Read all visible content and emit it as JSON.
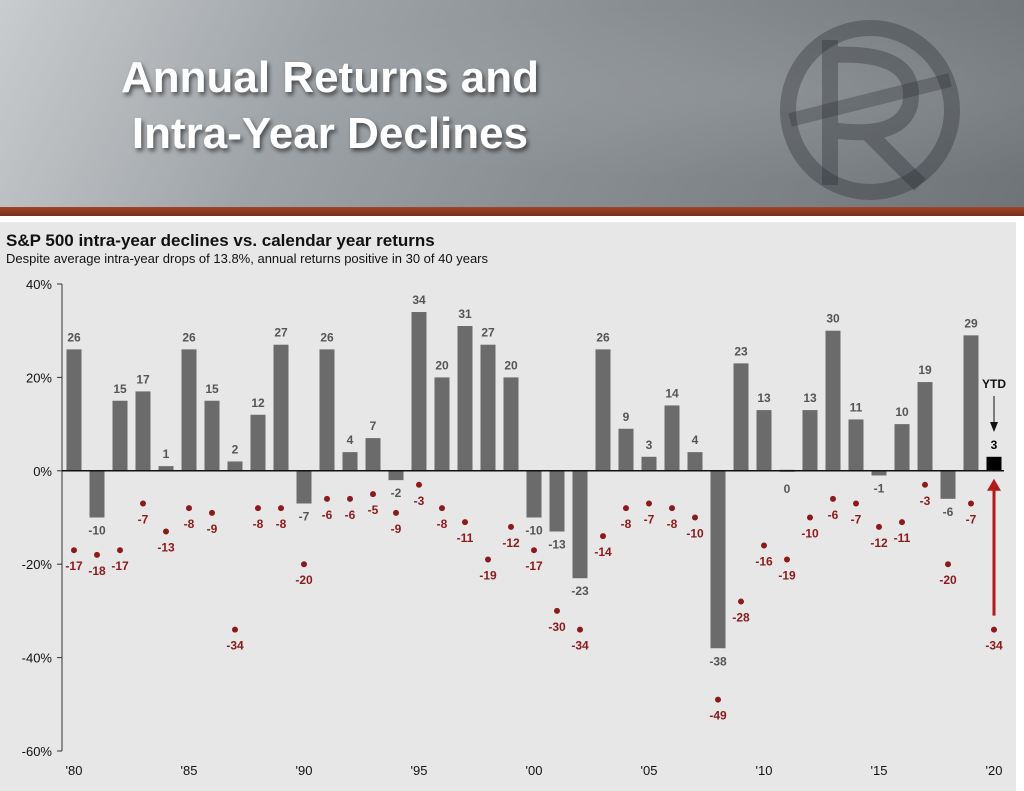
{
  "banner": {
    "title_line1": "Annual Returns and",
    "title_line2": "Intra-Year Declines"
  },
  "colors": {
    "bar": "#6b6b6b",
    "ytd_bar": "#000000",
    "decline": "#8b1a1a",
    "arrow": "#b01c1c",
    "panel": "#e7e7e7",
    "banner_accent": "#8a3a22"
  },
  "chart_data": {
    "type": "bar",
    "title": "S&P 500 intra-year declines vs. calendar year returns",
    "subtitle": "Despite average intra-year drops of 13.8%, annual returns positive in 30 of 40 years",
    "y_ticks": [
      "40%",
      "20%",
      "0%",
      "-20%",
      "-40%",
      "-60%"
    ],
    "ylim": [
      -60,
      40
    ],
    "x_tick_labels": [
      "'80",
      "'85",
      "'90",
      "'95",
      "'00",
      "'05",
      "'10",
      "'15",
      "'20"
    ],
    "years": [
      1980,
      1981,
      1982,
      1983,
      1984,
      1985,
      1986,
      1987,
      1988,
      1989,
      1990,
      1991,
      1992,
      1993,
      1994,
      1995,
      1996,
      1997,
      1998,
      1999,
      2000,
      2001,
      2002,
      2003,
      2004,
      2005,
      2006,
      2007,
      2008,
      2009,
      2010,
      2011,
      2012,
      2013,
      2014,
      2015,
      2016,
      2017,
      2018,
      2019,
      2020
    ],
    "series": [
      {
        "type": "bar",
        "values": [
          26,
          -10,
          15,
          17,
          1,
          26,
          15,
          2,
          12,
          27,
          -7,
          26,
          4,
          7,
          -2,
          34,
          20,
          31,
          27,
          20,
          -10,
          -13,
          -23,
          26,
          9,
          3,
          14,
          4,
          -38,
          23,
          13,
          0,
          13,
          30,
          11,
          -1,
          10,
          19,
          -6,
          29,
          3
        ]
      },
      {
        "type": "scatter",
        "values": [
          -17,
          -18,
          -17,
          -7,
          -13,
          -8,
          -9,
          -34,
          -8,
          -8,
          -20,
          -6,
          -6,
          -5,
          -9,
          -3,
          -8,
          -11,
          -19,
          -12,
          -17,
          -30,
          -34,
          -14,
          -8,
          -7,
          -8,
          -10,
          -49,
          -28,
          -16,
          -19,
          -10,
          -6,
          -7,
          -12,
          -11,
          -3,
          -20,
          -7,
          -34
        ]
      }
    ],
    "annotations": [
      {
        "text": "YTD",
        "year": 2020
      }
    ]
  }
}
